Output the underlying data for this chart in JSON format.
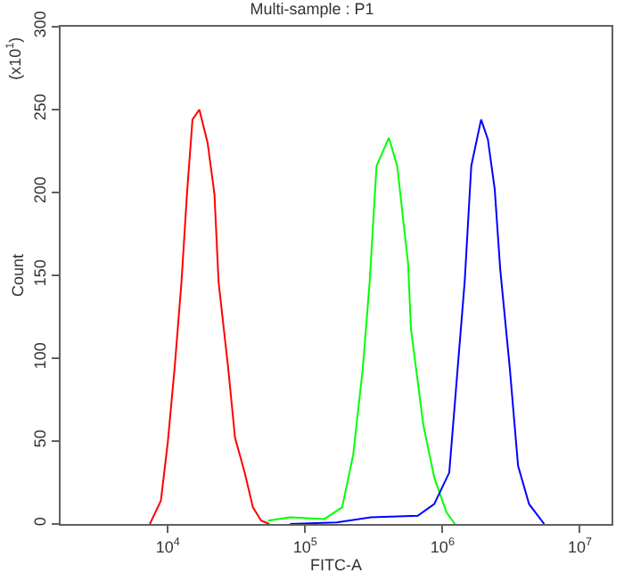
{
  "chart_data": {
    "type": "line",
    "title": "Multi-sample : P1",
    "xlabel": "FITC-A",
    "ylabel": "Count",
    "annotations": [
      "(x10$^{1}$)"
    ],
    "log": "x",
    "marker": "none",
    "line_style": "solid",
    "xlim": [
      1660,
      17000000
    ],
    "ylim": [
      0,
      300
    ],
    "xticks": [
      {
        "value": 10000,
        "label": "10$^{4}$"
      },
      {
        "value": 100000,
        "label": "10$^{5}$"
      },
      {
        "value": 1000000,
        "label": "10$^{6}$"
      },
      {
        "value": 10000000,
        "label": "10$^{7}$"
      }
    ],
    "yticks": [
      0,
      50,
      100,
      150,
      200,
      250,
      300
    ],
    "series": [
      {
        "color": "#ff0000",
        "x": [
          7413,
          8913,
          10000,
          11220,
          12590,
          13800,
          15140,
          16980,
          19500,
          21880,
          23440,
          27540,
          30900,
          36310,
          41690,
          47860,
          54950
        ],
        "values": [
          0,
          14,
          49,
          94,
          146,
          199,
          244,
          250,
          230,
          199,
          146,
          94,
          52,
          31,
          10,
          2,
          0
        ]
      },
      {
        "color": "#00ff00",
        "x": [
          53700,
          77600,
          138000,
          186000,
          224000,
          263000,
          295000,
          331000,
          407000,
          468000,
          562000,
          589000,
          724000,
          871000,
          1070000,
          1230000
        ],
        "values": [
          2,
          4,
          3,
          10,
          42,
          94,
          146,
          216,
          233,
          216,
          157,
          118,
          60,
          28,
          7,
          0
        ]
      },
      {
        "color": "#0000ff",
        "x": [
          77600,
          170000,
          302000,
          661000,
          871000,
          1120000,
          1290000,
          1450000,
          1620000,
          1910000,
          2140000,
          2400000,
          2630000,
          3090000,
          3550000,
          4270000,
          5500000
        ],
        "values": [
          0,
          1,
          4,
          5,
          12,
          31,
          94,
          146,
          216,
          244,
          232,
          202,
          154,
          94,
          35,
          12,
          0
        ]
      }
    ]
  }
}
